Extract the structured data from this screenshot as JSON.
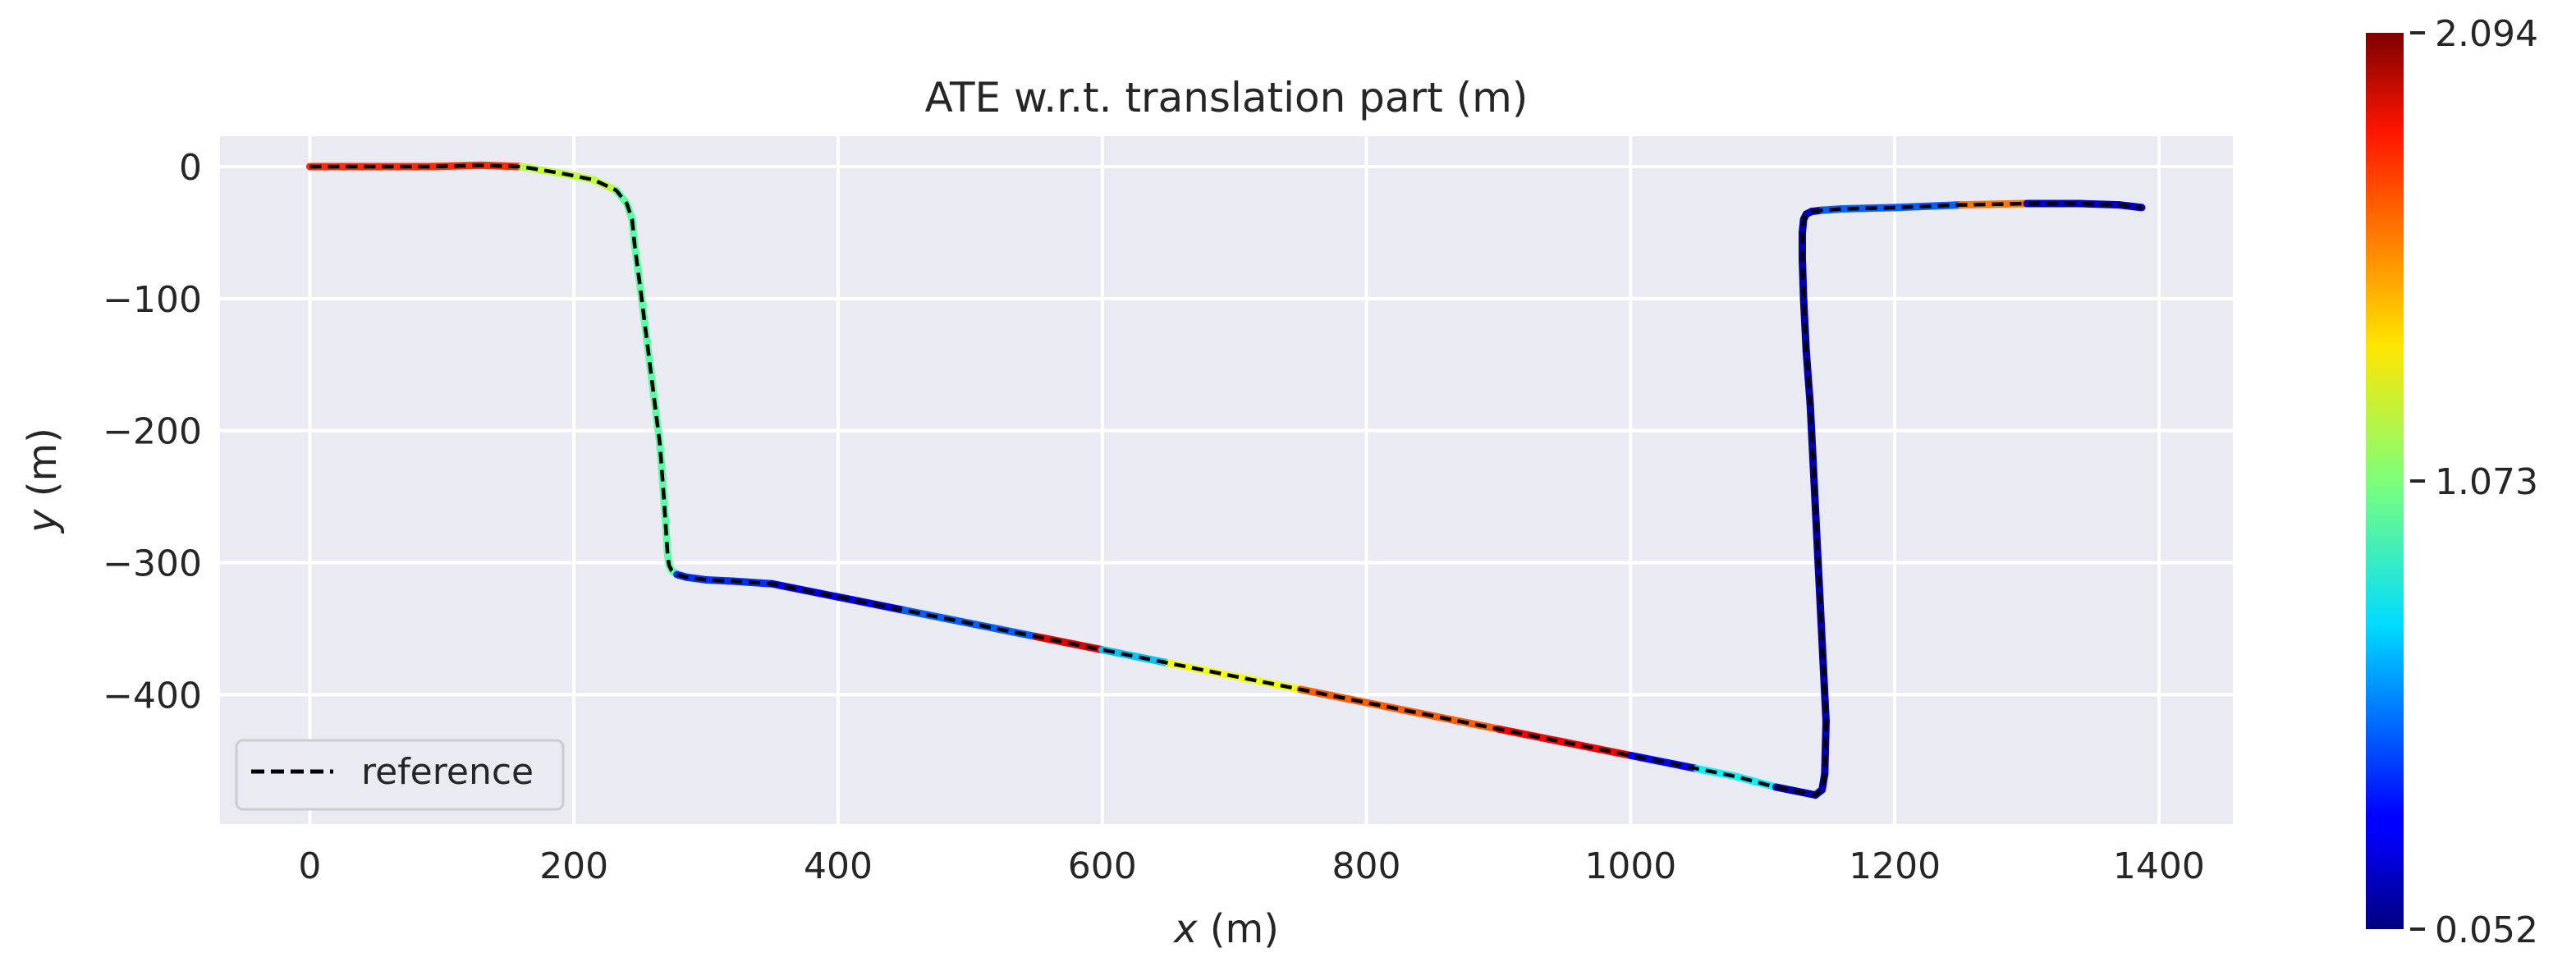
{
  "chart_data": {
    "type": "line",
    "title": "ATE w.r.t. translation part (m)",
    "xlabel_var": "x",
    "xlabel_unit": " (m)",
    "ylabel_var": "y",
    "ylabel_unit": " (m)",
    "xlim": [
      -68,
      1456
    ],
    "ylim": [
      -498,
      23
    ],
    "xticks": [
      0,
      200,
      400,
      600,
      800,
      1000,
      1200,
      1400
    ],
    "yticks": [
      0,
      -100,
      -200,
      -300,
      -400
    ],
    "ytick_labels": [
      "0",
      "−100",
      "−200",
      "−300",
      "−400"
    ],
    "grid": true,
    "legend": {
      "position": "lower-left",
      "entries": [
        "reference"
      ]
    },
    "colorbar": {
      "colormap": "jet",
      "min": 0.052,
      "max": 2.094,
      "tick_values": [
        0.052,
        1.073,
        2.094
      ],
      "tick_labels": [
        "0.052",
        "1.073",
        "2.094"
      ]
    },
    "series": [
      {
        "name": "reference",
        "style": "dashed",
        "color": "#000000",
        "x": [
          0,
          30,
          60,
          90,
          130,
          160,
          190,
          215,
          232,
          240,
          244,
          246,
          250,
          255,
          260,
          265,
          268,
          270,
          271,
          272,
          274,
          278,
          285,
          300,
          320,
          350,
          400,
          450,
          500,
          550,
          600,
          650,
          700,
          750,
          800,
          850,
          900,
          950,
          1000,
          1050,
          1080,
          1110,
          1130,
          1140,
          1145,
          1147,
          1148,
          1146,
          1144,
          1142,
          1140,
          1138,
          1136,
          1133,
          1131,
          1130,
          1130,
          1131,
          1133,
          1137,
          1145,
          1160,
          1200,
          1250,
          1300,
          1340,
          1370,
          1387
        ],
        "y": [
          0,
          0,
          0,
          0,
          1,
          0,
          -5,
          -10,
          -18,
          -28,
          -40,
          -60,
          -90,
          -130,
          -170,
          -210,
          -250,
          -280,
          -295,
          -302,
          -306,
          -309,
          -311,
          -313,
          -314,
          -316,
          -326,
          -336,
          -346,
          -356,
          -366,
          -376,
          -386,
          -396,
          -406,
          -416,
          -426,
          -436,
          -446,
          -456,
          -462,
          -470,
          -474,
          -476,
          -472,
          -460,
          -420,
          -380,
          -340,
          -300,
          -260,
          -220,
          -180,
          -140,
          -100,
          -70,
          -50,
          -40,
          -36,
          -34,
          -33,
          -32,
          -31,
          -29,
          -28,
          -28,
          -29,
          -31
        ]
      }
    ],
    "error_segments": [
      {
        "x0": 0,
        "x1": 150,
        "value": 1.75
      },
      {
        "x0": 150,
        "x1": 230,
        "value": 1.2
      },
      {
        "x0": 230,
        "x1": 280,
        "value": 1.0
      },
      {
        "x0": 280,
        "x1": 350,
        "value": 0.4
      },
      {
        "x0": 350,
        "x1": 450,
        "value": 0.25
      },
      {
        "x0": 450,
        "x1": 540,
        "value": 0.5
      },
      {
        "x0": 540,
        "x1": 600,
        "value": 1.9
      },
      {
        "x0": 600,
        "x1": 660,
        "value": 0.7
      },
      {
        "x0": 660,
        "x1": 770,
        "value": 1.3
      },
      {
        "x0": 770,
        "x1": 880,
        "value": 1.65
      },
      {
        "x0": 880,
        "x1": 980,
        "value": 1.85
      },
      {
        "x0": 980,
        "x1": 1060,
        "value": 0.3
      },
      {
        "x0": 1060,
        "x1": 1100,
        "value": 0.8
      },
      {
        "x0": 1100,
        "x1": 1150,
        "value": 0.15
      },
      {
        "x0": 1150,
        "x1": 1250,
        "value": 0.5
      },
      {
        "x0": 1250,
        "x1": 1300,
        "value": 1.6
      },
      {
        "x0": 1300,
        "x1": 1387,
        "value": 0.2
      }
    ]
  }
}
